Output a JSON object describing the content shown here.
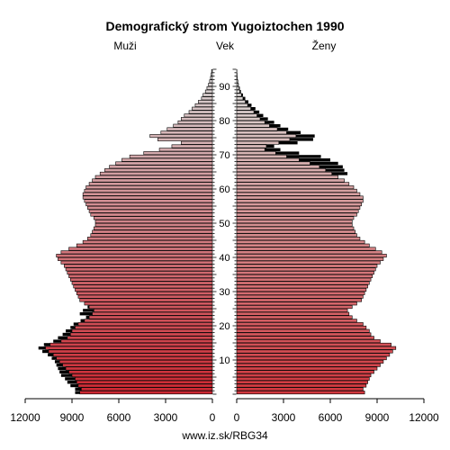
{
  "chart_data": {
    "type": "bar",
    "title": "Demografický strom Yugoiztochen 1990",
    "left_label": "Muži",
    "center_label": "Vek",
    "right_label": "Ženy",
    "source": "www.iz.sk/RBG34",
    "x_max": 12000,
    "x_ticks_male": [
      "12000",
      "9000",
      "6000",
      "3000",
      "0"
    ],
    "x_ticks_female": [
      "0",
      "3000",
      "6000",
      "9000",
      "12000"
    ],
    "age_ticks": [
      "10",
      "20",
      "30",
      "40",
      "50",
      "60",
      "70",
      "80",
      "90"
    ],
    "age_max": 95,
    "series": [
      {
        "name": "Muži",
        "values": [
          8500,
          8400,
          8600,
          8700,
          8800,
          9000,
          9200,
          9400,
          9600,
          9800,
          10000,
          10200,
          10500,
          10700,
          10400,
          9700,
          9300,
          9100,
          9000,
          8800,
          8600,
          8200,
          7900,
          7700,
          7600,
          7900,
          8200,
          8500,
          8600,
          8700,
          8800,
          8900,
          9000,
          9100,
          9200,
          9300,
          9400,
          9500,
          9700,
          9900,
          10000,
          9700,
          9200,
          8700,
          8300,
          8000,
          7800,
          7700,
          7600,
          7500,
          7500,
          7600,
          7800,
          7900,
          8000,
          8100,
          8200,
          8300,
          8300,
          8200,
          8100,
          7900,
          7700,
          7500,
          7200,
          6900,
          6600,
          6200,
          5800,
          5300,
          4400,
          3400,
          2600,
          2000,
          3500,
          4000,
          3300,
          2900,
          2500,
          2200,
          2000,
          1800,
          1500,
          1300,
          1100,
          900,
          700,
          600,
          450,
          350,
          250,
          180,
          120,
          80,
          50
        ],
        "excess_values": [
          300,
          400,
          500,
          600,
          650,
          700,
          600,
          500,
          400,
          300,
          300,
          350,
          400,
          450,
          400,
          500,
          600,
          500,
          400,
          300,
          300,
          250,
          200,
          800,
          700,
          100,
          0,
          0,
          0,
          0,
          0,
          0,
          0,
          0,
          0,
          0,
          0,
          0,
          0,
          0,
          0,
          0,
          0,
          0,
          0,
          0,
          0,
          0,
          0,
          0,
          0,
          0,
          0,
          0,
          0,
          0,
          0,
          0,
          0,
          0,
          0,
          0,
          0,
          0,
          0,
          0,
          0,
          0,
          0,
          0,
          0,
          0,
          0,
          0,
          0,
          0,
          0,
          0,
          0,
          0,
          0,
          0,
          0,
          0,
          0,
          0,
          0,
          0,
          0,
          0,
          0,
          0,
          0,
          0,
          0
        ]
      },
      {
        "name": "Ženy",
        "values": [
          8200,
          8100,
          8300,
          8400,
          8500,
          8600,
          8800,
          9000,
          9200,
          9400,
          9600,
          9800,
          10000,
          10200,
          9900,
          9200,
          8800,
          8600,
          8500,
          8300,
          8100,
          7700,
          7400,
          7200,
          7100,
          7400,
          7700,
          8000,
          8100,
          8200,
          8300,
          8400,
          8500,
          8600,
          8700,
          8800,
          8900,
          9000,
          9200,
          9400,
          9600,
          9300,
          8900,
          8500,
          8200,
          7900,
          7700,
          7600,
          7500,
          7400,
          7400,
          7500,
          7700,
          7800,
          7900,
          8000,
          8100,
          8100,
          7900,
          7700,
          7500,
          7200,
          6900,
          6500,
          6100,
          5700,
          5300,
          4700,
          4000,
          3200,
          2500,
          1800,
          1900,
          2700,
          3400,
          3800,
          3200,
          2600,
          2100,
          1800,
          1500,
          1300,
          1100,
          900,
          700,
          550,
          400,
          300,
          200,
          150,
          100,
          70,
          40,
          20,
          10
        ],
        "excess_values": [
          0,
          0,
          0,
          0,
          0,
          0,
          0,
          0,
          0,
          0,
          0,
          0,
          0,
          0,
          0,
          0,
          0,
          0,
          0,
          0,
          0,
          0,
          0,
          0,
          0,
          0,
          0,
          0,
          0,
          0,
          0,
          0,
          0,
          0,
          0,
          0,
          0,
          0,
          0,
          0,
          0,
          0,
          0,
          0,
          0,
          0,
          0,
          0,
          0,
          0,
          0,
          0,
          0,
          0,
          0,
          0,
          0,
          0,
          0,
          0,
          0,
          0,
          0,
          0,
          1000,
          1200,
          1500,
          1800,
          2000,
          2200,
          1500,
          1000,
          500,
          1200,
          1500,
          1200,
          900,
          700,
          700,
          600,
          500,
          400,
          350,
          300,
          250,
          200,
          150,
          100,
          70,
          50,
          30,
          20,
          10,
          5,
          0
        ]
      }
    ]
  }
}
